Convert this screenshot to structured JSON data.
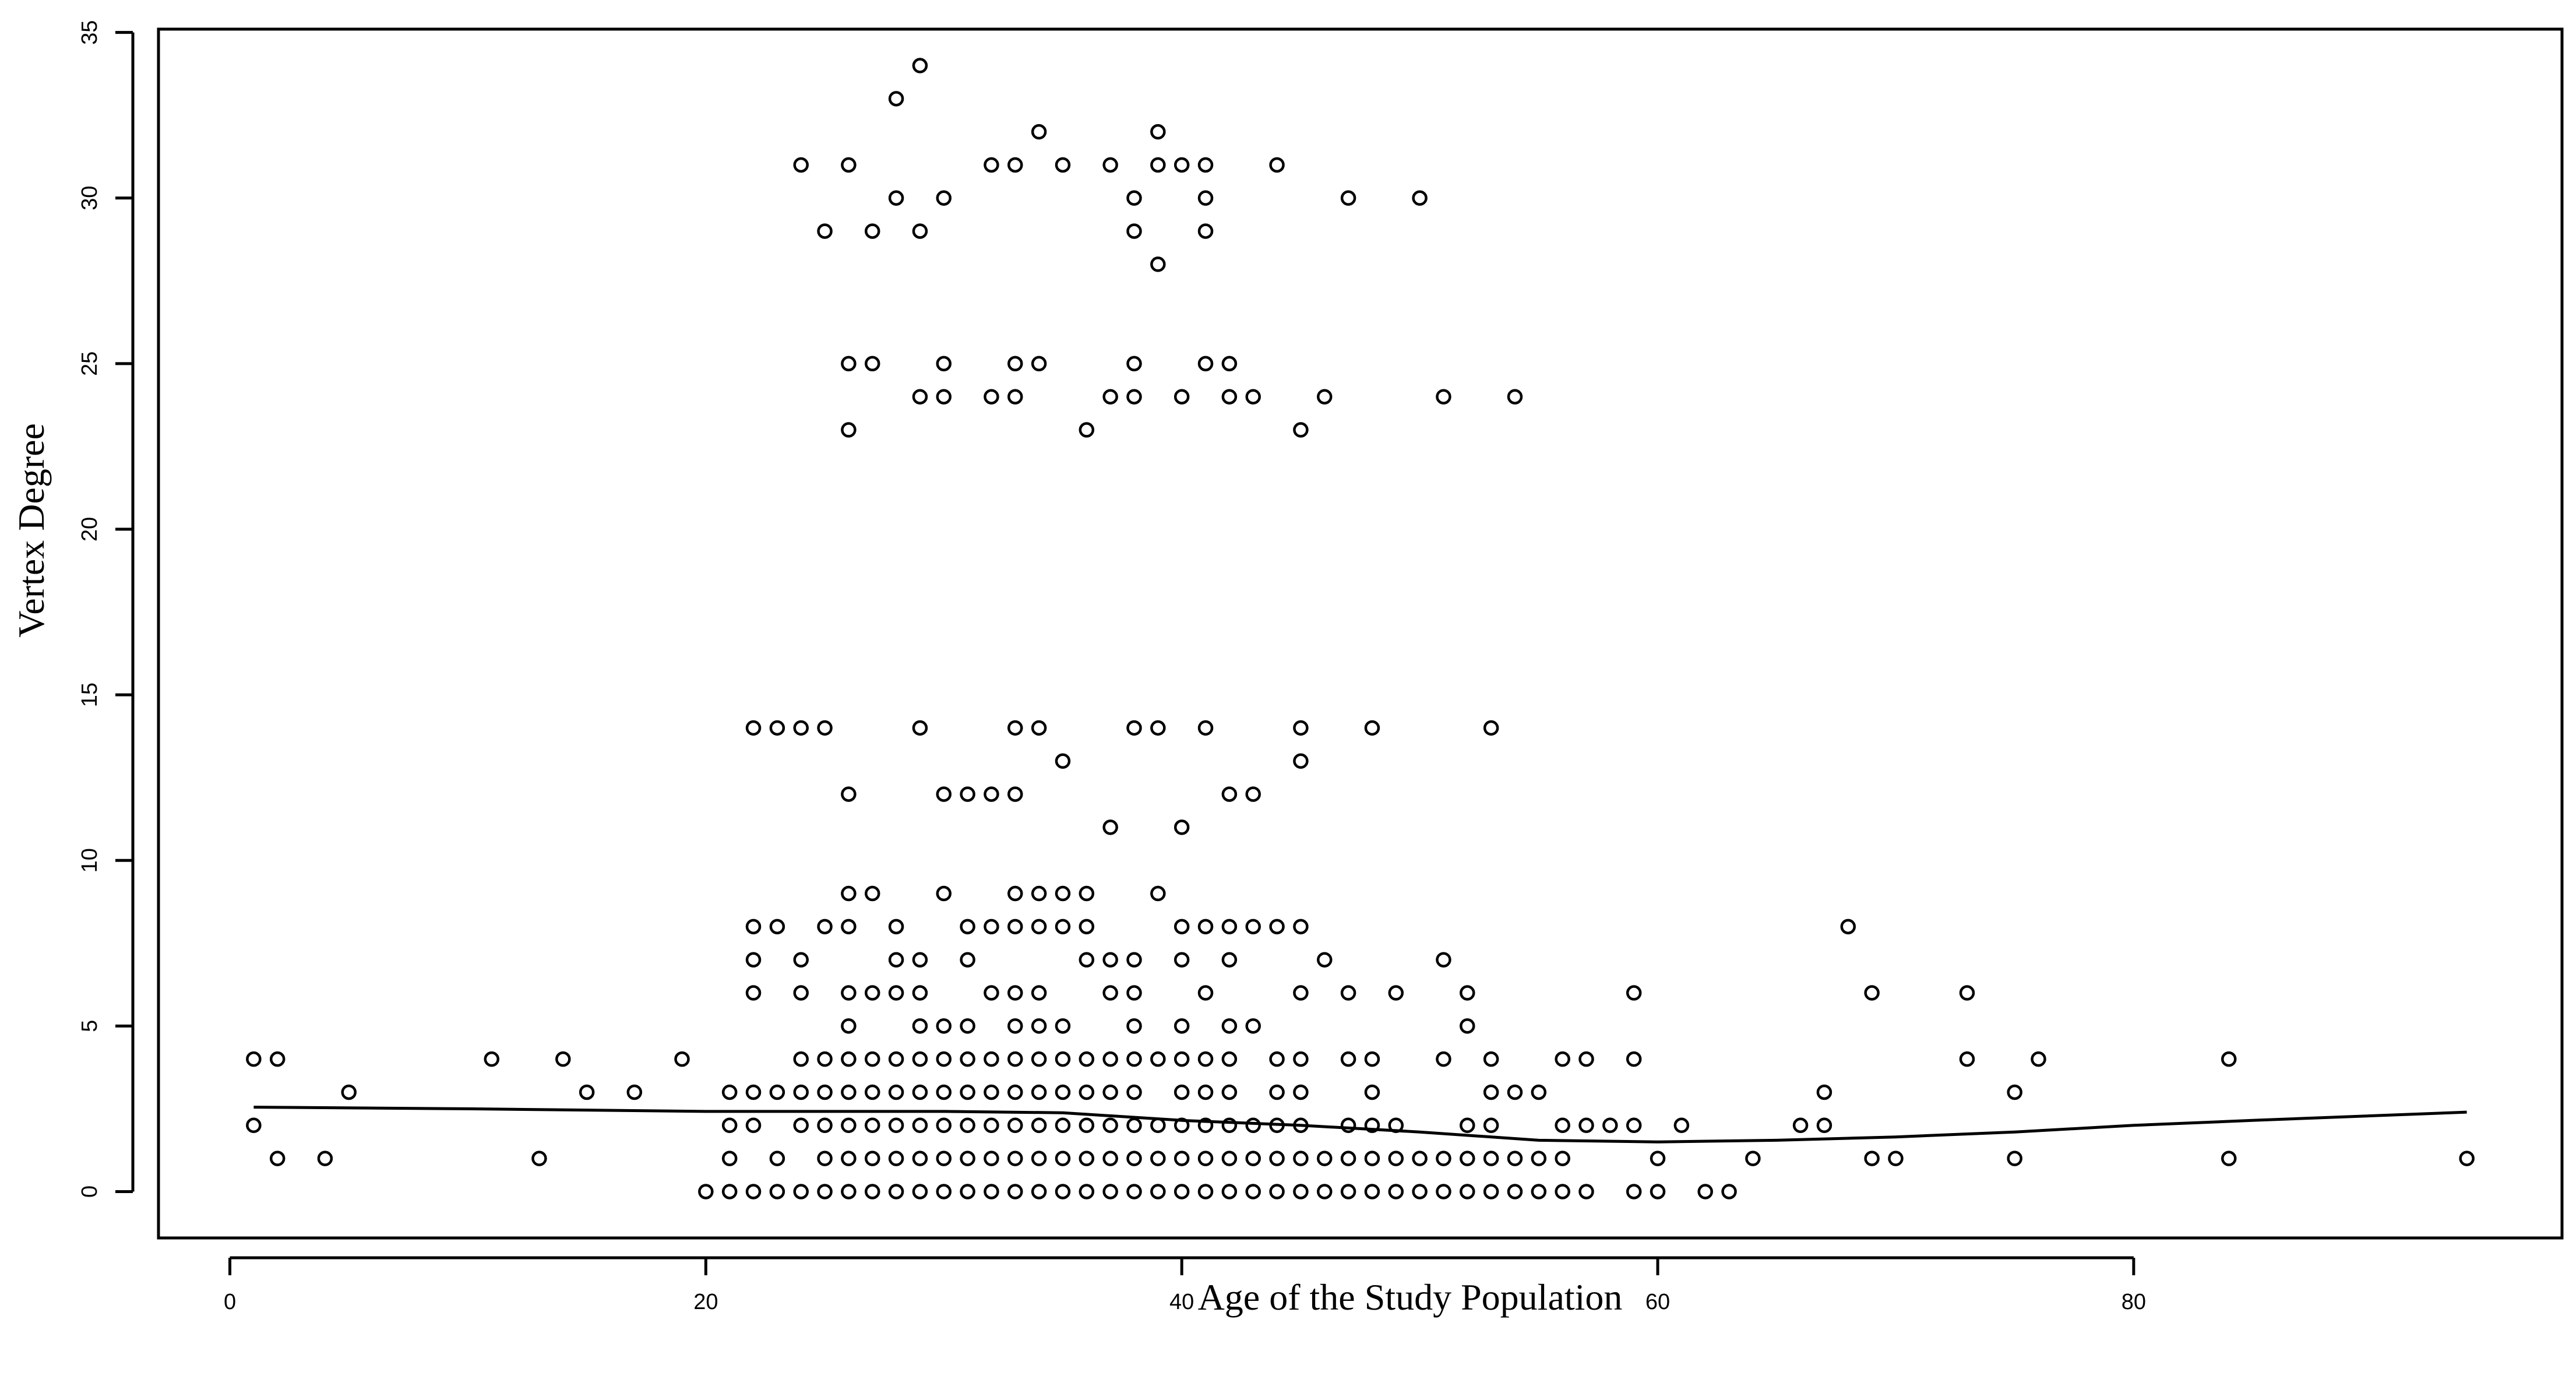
{
  "chart_data": {
    "type": "scatter",
    "title": "",
    "xlabel": "Age of the Study Population",
    "ylabel": "Vertex Degree",
    "xlim": [
      -3,
      98
    ],
    "ylim": [
      -1.4,
      35.1
    ],
    "x_ticks": [
      0,
      20,
      40,
      60,
      80
    ],
    "y_ticks": [
      0,
      5,
      10,
      15,
      20,
      25,
      30,
      35
    ],
    "grid": false,
    "legend": "none",
    "series": [
      {
        "marker": "open-circle",
        "points": [
          [
            1,
            4
          ],
          [
            2,
            4
          ],
          [
            1,
            2
          ],
          [
            2,
            1
          ],
          [
            4,
            1
          ],
          [
            5,
            3
          ],
          [
            11,
            4
          ],
          [
            13,
            1
          ],
          [
            14,
            4
          ],
          [
            15,
            3
          ],
          [
            17,
            3
          ],
          [
            19,
            4
          ],
          [
            20,
            0
          ],
          [
            21,
            0
          ],
          [
            21,
            1
          ],
          [
            21,
            2
          ],
          [
            21,
            3
          ],
          [
            22,
            0
          ],
          [
            22,
            2
          ],
          [
            22,
            3
          ],
          [
            22,
            6
          ],
          [
            22,
            7
          ],
          [
            22,
            8
          ],
          [
            22,
            14
          ],
          [
            23,
            0
          ],
          [
            23,
            1
          ],
          [
            23,
            3
          ],
          [
            23,
            8
          ],
          [
            23,
            14
          ],
          [
            24,
            0
          ],
          [
            24,
            2
          ],
          [
            24,
            3
          ],
          [
            24,
            4
          ],
          [
            24,
            6
          ],
          [
            24,
            7
          ],
          [
            24,
            14
          ],
          [
            24,
            31
          ],
          [
            25,
            0
          ],
          [
            25,
            1
          ],
          [
            25,
            2
          ],
          [
            25,
            3
          ],
          [
            25,
            4
          ],
          [
            25,
            8
          ],
          [
            25,
            14
          ],
          [
            25,
            29
          ],
          [
            26,
            0
          ],
          [
            26,
            1
          ],
          [
            26,
            2
          ],
          [
            26,
            3
          ],
          [
            26,
            4
          ],
          [
            26,
            5
          ],
          [
            26,
            6
          ],
          [
            26,
            8
          ],
          [
            26,
            9
          ],
          [
            26,
            12
          ],
          [
            26,
            23
          ],
          [
            26,
            25
          ],
          [
            26,
            31
          ],
          [
            27,
            0
          ],
          [
            27,
            1
          ],
          [
            27,
            2
          ],
          [
            27,
            3
          ],
          [
            27,
            4
          ],
          [
            27,
            6
          ],
          [
            27,
            9
          ],
          [
            27,
            25
          ],
          [
            27,
            29
          ],
          [
            28,
            0
          ],
          [
            28,
            1
          ],
          [
            28,
            2
          ],
          [
            28,
            3
          ],
          [
            28,
            4
          ],
          [
            28,
            6
          ],
          [
            28,
            7
          ],
          [
            28,
            8
          ],
          [
            28,
            30
          ],
          [
            28,
            33
          ],
          [
            29,
            0
          ],
          [
            29,
            1
          ],
          [
            29,
            2
          ],
          [
            29,
            3
          ],
          [
            29,
            4
          ],
          [
            29,
            5
          ],
          [
            29,
            6
          ],
          [
            29,
            7
          ],
          [
            29,
            14
          ],
          [
            29,
            24
          ],
          [
            29,
            29
          ],
          [
            29,
            34
          ],
          [
            30,
            0
          ],
          [
            30,
            1
          ],
          [
            30,
            2
          ],
          [
            30,
            3
          ],
          [
            30,
            4
          ],
          [
            30,
            5
          ],
          [
            30,
            9
          ],
          [
            30,
            12
          ],
          [
            30,
            24
          ],
          [
            30,
            25
          ],
          [
            30,
            30
          ],
          [
            31,
            0
          ],
          [
            31,
            1
          ],
          [
            31,
            2
          ],
          [
            31,
            3
          ],
          [
            31,
            4
          ],
          [
            31,
            5
          ],
          [
            31,
            7
          ],
          [
            31,
            8
          ],
          [
            31,
            12
          ],
          [
            32,
            0
          ],
          [
            32,
            1
          ],
          [
            32,
            2
          ],
          [
            32,
            3
          ],
          [
            32,
            4
          ],
          [
            32,
            6
          ],
          [
            32,
            8
          ],
          [
            32,
            12
          ],
          [
            32,
            24
          ],
          [
            32,
            31
          ],
          [
            33,
            0
          ],
          [
            33,
            1
          ],
          [
            33,
            2
          ],
          [
            33,
            3
          ],
          [
            33,
            4
          ],
          [
            33,
            5
          ],
          [
            33,
            6
          ],
          [
            33,
            8
          ],
          [
            33,
            9
          ],
          [
            33,
            12
          ],
          [
            33,
            14
          ],
          [
            33,
            24
          ],
          [
            33,
            25
          ],
          [
            33,
            31
          ],
          [
            34,
            0
          ],
          [
            34,
            1
          ],
          [
            34,
            2
          ],
          [
            34,
            3
          ],
          [
            34,
            4
          ],
          [
            34,
            5
          ],
          [
            34,
            6
          ],
          [
            34,
            8
          ],
          [
            34,
            9
          ],
          [
            34,
            14
          ],
          [
            34,
            25
          ],
          [
            34,
            32
          ],
          [
            35,
            0
          ],
          [
            35,
            1
          ],
          [
            35,
            2
          ],
          [
            35,
            3
          ],
          [
            35,
            4
          ],
          [
            35,
            5
          ],
          [
            35,
            8
          ],
          [
            35,
            9
          ],
          [
            35,
            13
          ],
          [
            35,
            31
          ],
          [
            36,
            0
          ],
          [
            36,
            1
          ],
          [
            36,
            2
          ],
          [
            36,
            3
          ],
          [
            36,
            4
          ],
          [
            36,
            7
          ],
          [
            36,
            8
          ],
          [
            36,
            9
          ],
          [
            36,
            23
          ],
          [
            37,
            0
          ],
          [
            37,
            1
          ],
          [
            37,
            2
          ],
          [
            37,
            3
          ],
          [
            37,
            4
          ],
          [
            37,
            6
          ],
          [
            37,
            7
          ],
          [
            37,
            11
          ],
          [
            37,
            24
          ],
          [
            37,
            31
          ],
          [
            38,
            0
          ],
          [
            38,
            1
          ],
          [
            38,
            2
          ],
          [
            38,
            3
          ],
          [
            38,
            4
          ],
          [
            38,
            5
          ],
          [
            38,
            6
          ],
          [
            38,
            7
          ],
          [
            38,
            14
          ],
          [
            38,
            24
          ],
          [
            38,
            25
          ],
          [
            38,
            29
          ],
          [
            38,
            30
          ],
          [
            39,
            0
          ],
          [
            39,
            1
          ],
          [
            39,
            2
          ],
          [
            39,
            4
          ],
          [
            39,
            9
          ],
          [
            39,
            14
          ],
          [
            39,
            28
          ],
          [
            39,
            31
          ],
          [
            39,
            32
          ],
          [
            40,
            0
          ],
          [
            40,
            1
          ],
          [
            40,
            2
          ],
          [
            40,
            3
          ],
          [
            40,
            4
          ],
          [
            40,
            5
          ],
          [
            40,
            7
          ],
          [
            40,
            8
          ],
          [
            40,
            11
          ],
          [
            40,
            24
          ],
          [
            40,
            31
          ],
          [
            41,
            0
          ],
          [
            41,
            1
          ],
          [
            41,
            2
          ],
          [
            41,
            3
          ],
          [
            41,
            4
          ],
          [
            41,
            6
          ],
          [
            41,
            8
          ],
          [
            41,
            14
          ],
          [
            41,
            25
          ],
          [
            41,
            29
          ],
          [
            41,
            30
          ],
          [
            41,
            31
          ],
          [
            42,
            0
          ],
          [
            42,
            1
          ],
          [
            42,
            2
          ],
          [
            42,
            3
          ],
          [
            42,
            4
          ],
          [
            42,
            5
          ],
          [
            42,
            7
          ],
          [
            42,
            8
          ],
          [
            42,
            12
          ],
          [
            42,
            24
          ],
          [
            42,
            25
          ],
          [
            43,
            0
          ],
          [
            43,
            1
          ],
          [
            43,
            2
          ],
          [
            43,
            5
          ],
          [
            43,
            8
          ],
          [
            43,
            12
          ],
          [
            43,
            24
          ],
          [
            44,
            0
          ],
          [
            44,
            1
          ],
          [
            44,
            2
          ],
          [
            44,
            3
          ],
          [
            44,
            4
          ],
          [
            44,
            8
          ],
          [
            44,
            31
          ],
          [
            45,
            0
          ],
          [
            45,
            1
          ],
          [
            45,
            2
          ],
          [
            45,
            3
          ],
          [
            45,
            4
          ],
          [
            45,
            6
          ],
          [
            45,
            8
          ],
          [
            45,
            13
          ],
          [
            45,
            14
          ],
          [
            45,
            23
          ],
          [
            46,
            0
          ],
          [
            46,
            1
          ],
          [
            46,
            7
          ],
          [
            46,
            24
          ],
          [
            47,
            0
          ],
          [
            47,
            1
          ],
          [
            47,
            2
          ],
          [
            47,
            4
          ],
          [
            47,
            6
          ],
          [
            47,
            30
          ],
          [
            48,
            0
          ],
          [
            48,
            1
          ],
          [
            48,
            2
          ],
          [
            48,
            3
          ],
          [
            48,
            4
          ],
          [
            48,
            14
          ],
          [
            49,
            0
          ],
          [
            49,
            1
          ],
          [
            49,
            2
          ],
          [
            49,
            6
          ],
          [
            50,
            0
          ],
          [
            50,
            1
          ],
          [
            50,
            30
          ],
          [
            51,
            0
          ],
          [
            51,
            1
          ],
          [
            51,
            4
          ],
          [
            51,
            7
          ],
          [
            51,
            24
          ],
          [
            52,
            0
          ],
          [
            52,
            1
          ],
          [
            52,
            2
          ],
          [
            52,
            5
          ],
          [
            52,
            6
          ],
          [
            53,
            0
          ],
          [
            53,
            1
          ],
          [
            53,
            2
          ],
          [
            53,
            3
          ],
          [
            53,
            4
          ],
          [
            53,
            14
          ],
          [
            54,
            0
          ],
          [
            54,
            1
          ],
          [
            54,
            3
          ],
          [
            54,
            24
          ],
          [
            55,
            0
          ],
          [
            55,
            1
          ],
          [
            55,
            3
          ],
          [
            56,
            0
          ],
          [
            56,
            1
          ],
          [
            56,
            2
          ],
          [
            56,
            4
          ],
          [
            57,
            0
          ],
          [
            57,
            2
          ],
          [
            57,
            4
          ],
          [
            58,
            2
          ],
          [
            59,
            0
          ],
          [
            59,
            2
          ],
          [
            59,
            4
          ],
          [
            59,
            6
          ],
          [
            60,
            0
          ],
          [
            60,
            1
          ],
          [
            61,
            2
          ],
          [
            62,
            0
          ],
          [
            63,
            0
          ],
          [
            64,
            1
          ],
          [
            66,
            2
          ],
          [
            67,
            2
          ],
          [
            67,
            3
          ],
          [
            68,
            8
          ],
          [
            69,
            1
          ],
          [
            69,
            6
          ],
          [
            70,
            1
          ],
          [
            73,
            4
          ],
          [
            73,
            6
          ],
          [
            75,
            1
          ],
          [
            75,
            3
          ],
          [
            76,
            4
          ],
          [
            84,
            1
          ],
          [
            84,
            4
          ],
          [
            94,
            1
          ]
        ]
      }
    ],
    "smoothed_line": {
      "points": [
        [
          1,
          2.55
        ],
        [
          10,
          2.5
        ],
        [
          20,
          2.42
        ],
        [
          30,
          2.42
        ],
        [
          35,
          2.38
        ],
        [
          40,
          2.15
        ],
        [
          45,
          2.0
        ],
        [
          50,
          1.8
        ],
        [
          55,
          1.55
        ],
        [
          60,
          1.5
        ],
        [
          65,
          1.55
        ],
        [
          70,
          1.65
        ],
        [
          75,
          1.8
        ],
        [
          80,
          2.0
        ],
        [
          85,
          2.15
        ],
        [
          94,
          2.4
        ]
      ]
    }
  }
}
